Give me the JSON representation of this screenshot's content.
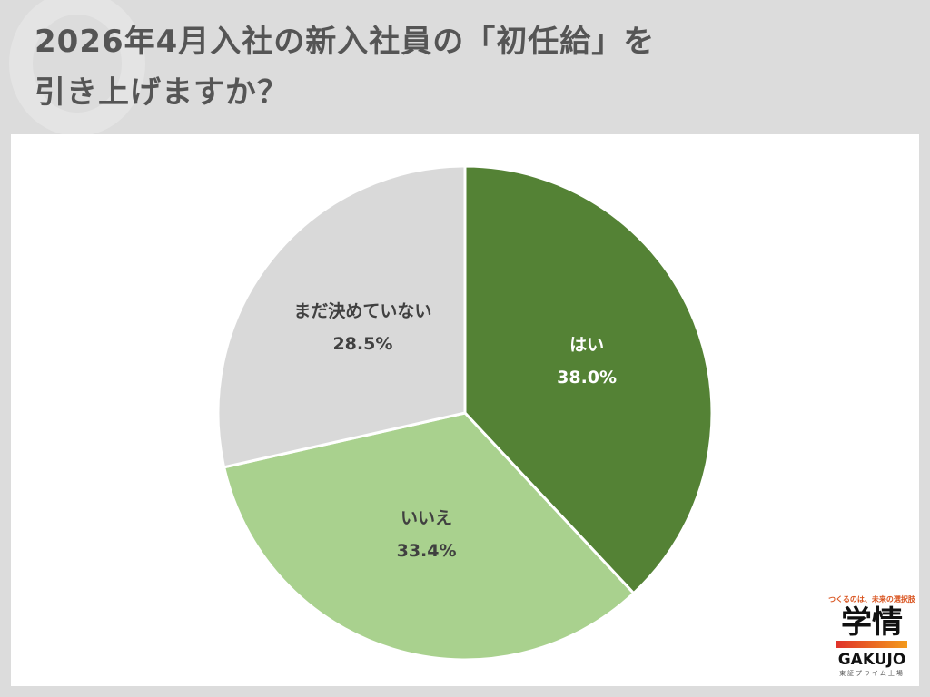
{
  "title_lines": [
    "2026年4月入社の新入社員の「初任給」を",
    "引き上げますか？"
  ],
  "chart_data": {
    "type": "pie",
    "title": "2026年4月入社の新入社員の「初任給」を引き上げますか？",
    "start": "12 o'clock, clockwise",
    "categories": [
      "はい",
      "いいえ",
      "まだ決めていない"
    ],
    "values": [
      38.0,
      33.4,
      28.5
    ],
    "labels": [
      "38.0%",
      "33.4%",
      "28.5%"
    ],
    "colors": [
      "#548235",
      "#a9d18e",
      "#d9d9d9"
    ],
    "label_colors": [
      "#ffffff",
      "#404040",
      "#404040"
    ],
    "legend": "none (labels on slices)"
  },
  "logo": {
    "tagline": "つくるのは、未来の選択肢",
    "name": "学情",
    "en": "GAKUJO",
    "sub": "東証プライム上場"
  }
}
